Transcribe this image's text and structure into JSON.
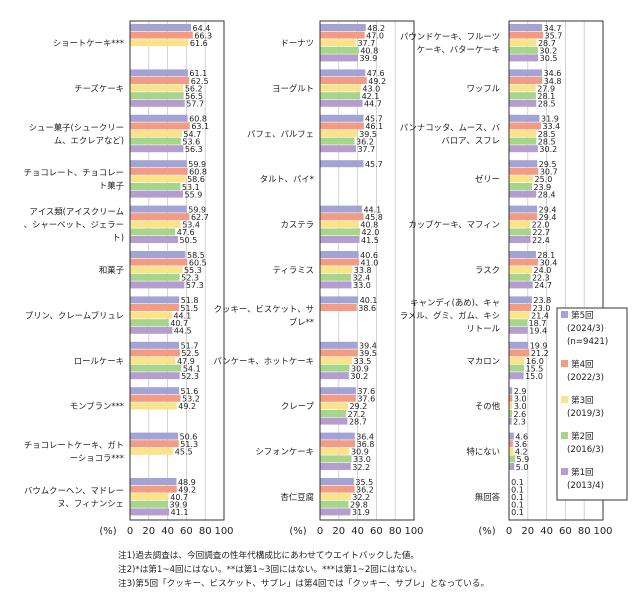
{
  "chart_data": [
    {
      "type": "bar",
      "orientation": "horizontal",
      "xlim": [
        0,
        100
      ],
      "xticks": [
        "0",
        "20",
        "40",
        "60",
        "80",
        "100"
      ],
      "xlabel": "(%)",
      "categories": [
        "ショートケーキ***",
        "チーズケーキ",
        "シュー菓子(シュークリーム、エクレアなど)",
        "チョコレート、チョコレート菓子",
        "アイス類(アイスクリーム、シャーベット、ジェラート)",
        "和菓子",
        "プリン、クレームブリュレ",
        "ロールケーキ",
        "モンブラン***",
        "チョコレートケーキ、ガトーショコラ***",
        "バウムクーヘン、マドレーヌ、フィナンシェ"
      ],
      "series": [
        {
          "name": "第5回",
          "values": [
            64.4,
            61.1,
            60.8,
            59.9,
            59.9,
            58.5,
            51.8,
            51.7,
            51.6,
            50.6,
            48.9
          ]
        },
        {
          "name": "第4回",
          "values": [
            66.3,
            62.5,
            63.1,
            60.8,
            62.7,
            60.5,
            51.5,
            52.5,
            53.2,
            51.3,
            49.2
          ]
        },
        {
          "name": "第3回",
          "values": [
            61.6,
            56.2,
            54.7,
            58.6,
            53.4,
            55.3,
            44.1,
            47.9,
            49.2,
            45.5,
            40.7
          ]
        },
        {
          "name": "第2回",
          "values": [
            null,
            56.5,
            53.6,
            53.1,
            47.6,
            52.3,
            40.7,
            54.1,
            null,
            null,
            39.9
          ]
        },
        {
          "name": "第1回",
          "values": [
            null,
            57.7,
            56.3,
            55.9,
            50.5,
            57.3,
            44.5,
            52.3,
            null,
            null,
            41.1
          ]
        }
      ]
    },
    {
      "type": "bar",
      "orientation": "horizontal",
      "xlim": [
        0,
        100
      ],
      "xticks": [
        "0",
        "20",
        "40",
        "60",
        "80",
        "100"
      ],
      "xlabel": "(%)",
      "categories": [
        "ドーナツ",
        "ヨーグルト",
        "パフェ、パルフェ",
        "タルト、パイ*",
        "カステラ",
        "ティラミス",
        "クッキー、ビスケット、サブレ**",
        "パンケーキ、ホットケーキ",
        "クレープ",
        "シフォンケーキ",
        "杏仁豆腐"
      ],
      "series": [
        {
          "name": "第5回",
          "values": [
            48.2,
            47.6,
            45.7,
            45.7,
            44.1,
            40.6,
            40.1,
            39.4,
            37.6,
            36.4,
            35.5
          ]
        },
        {
          "name": "第4回",
          "values": [
            47.0,
            49.2,
            46.1,
            null,
            45.8,
            41.0,
            38.6,
            39.5,
            37.6,
            36.8,
            36.2
          ]
        },
        {
          "name": "第3回",
          "values": [
            37.7,
            43.0,
            39.5,
            null,
            40.8,
            33.8,
            null,
            33.5,
            29.2,
            30.9,
            32.2
          ]
        },
        {
          "name": "第2回",
          "values": [
            40.8,
            42.1,
            36.2,
            null,
            42.0,
            32.4,
            null,
            30.9,
            27.2,
            33.0,
            29.8
          ]
        },
        {
          "name": "第1回",
          "values": [
            39.9,
            44.7,
            37.7,
            null,
            41.5,
            33.0,
            null,
            30.2,
            28.7,
            32.2,
            31.9
          ]
        }
      ]
    },
    {
      "type": "bar",
      "orientation": "horizontal",
      "xlim": [
        0,
        100
      ],
      "xticks": [
        "0",
        "20",
        "40",
        "60",
        "80",
        "100"
      ],
      "xlabel": "(%)",
      "categories": [
        "パウンドケーキ、フルーツケーキ、バターケーキ",
        "ワッフル",
        "パンナコッタ、ムース、ババロア、スフレ",
        "ゼリー",
        "カップケーキ、マフィン",
        "ラスク",
        "キャンディ(あめ)、キャラメル、グミ、ガム、キシリトール",
        "マカロン",
        "その他",
        "特にない",
        "無回答"
      ],
      "series": [
        {
          "name": "第5回",
          "values": [
            34.7,
            34.6,
            31.9,
            29.5,
            29.4,
            28.1,
            23.8,
            19.9,
            2.9,
            4.6,
            0.1
          ]
        },
        {
          "name": "第4回",
          "values": [
            35.7,
            34.8,
            33.4,
            30.7,
            29.4,
            30.4,
            23.0,
            21.2,
            3.0,
            3.6,
            0.1
          ]
        },
        {
          "name": "第3回",
          "values": [
            28.7,
            27.9,
            28.5,
            25.0,
            22.0,
            24.0,
            21.4,
            16.0,
            3.0,
            4.2,
            0.1
          ]
        },
        {
          "name": "第2回",
          "values": [
            30.2,
            28.1,
            28.5,
            23.9,
            22.7,
            22.3,
            18.7,
            15.5,
            2.6,
            5.9,
            0.1
          ]
        },
        {
          "name": "第1回",
          "values": [
            30.5,
            28.5,
            30.2,
            28.4,
            22.4,
            24.7,
            19.4,
            15.0,
            2.3,
            5.0,
            0.1
          ]
        }
      ]
    }
  ],
  "legend": {
    "items": [
      {
        "label": "第5回",
        "sub": [
          "(2024/3)",
          "(n=9421)"
        ],
        "color": "#a3a3d6"
      },
      {
        "label": "第4回",
        "sub": [
          "(2022/3)"
        ],
        "color": "#f29c86"
      },
      {
        "label": "第3回",
        "sub": [
          "(2019/3)"
        ],
        "color": "#fbe38c"
      },
      {
        "label": "第2回",
        "sub": [
          "(2016/3)"
        ],
        "color": "#a6d68b"
      },
      {
        "label": "第1回",
        "sub": [
          "(2013/4)"
        ],
        "color": "#b59ecf"
      }
    ]
  },
  "notes": [
    "注1)過去調査は、今回調査の性年代構成比にあわせてウエイトバックした値。",
    "注2)*は第1~4回にはない。**は第1~3回にはない。***は第1~2回にはない。",
    "注3)第5回「クッキー、ビスケット、サブレ」は第4回では「クッキー、サブレ」となっている。"
  ]
}
